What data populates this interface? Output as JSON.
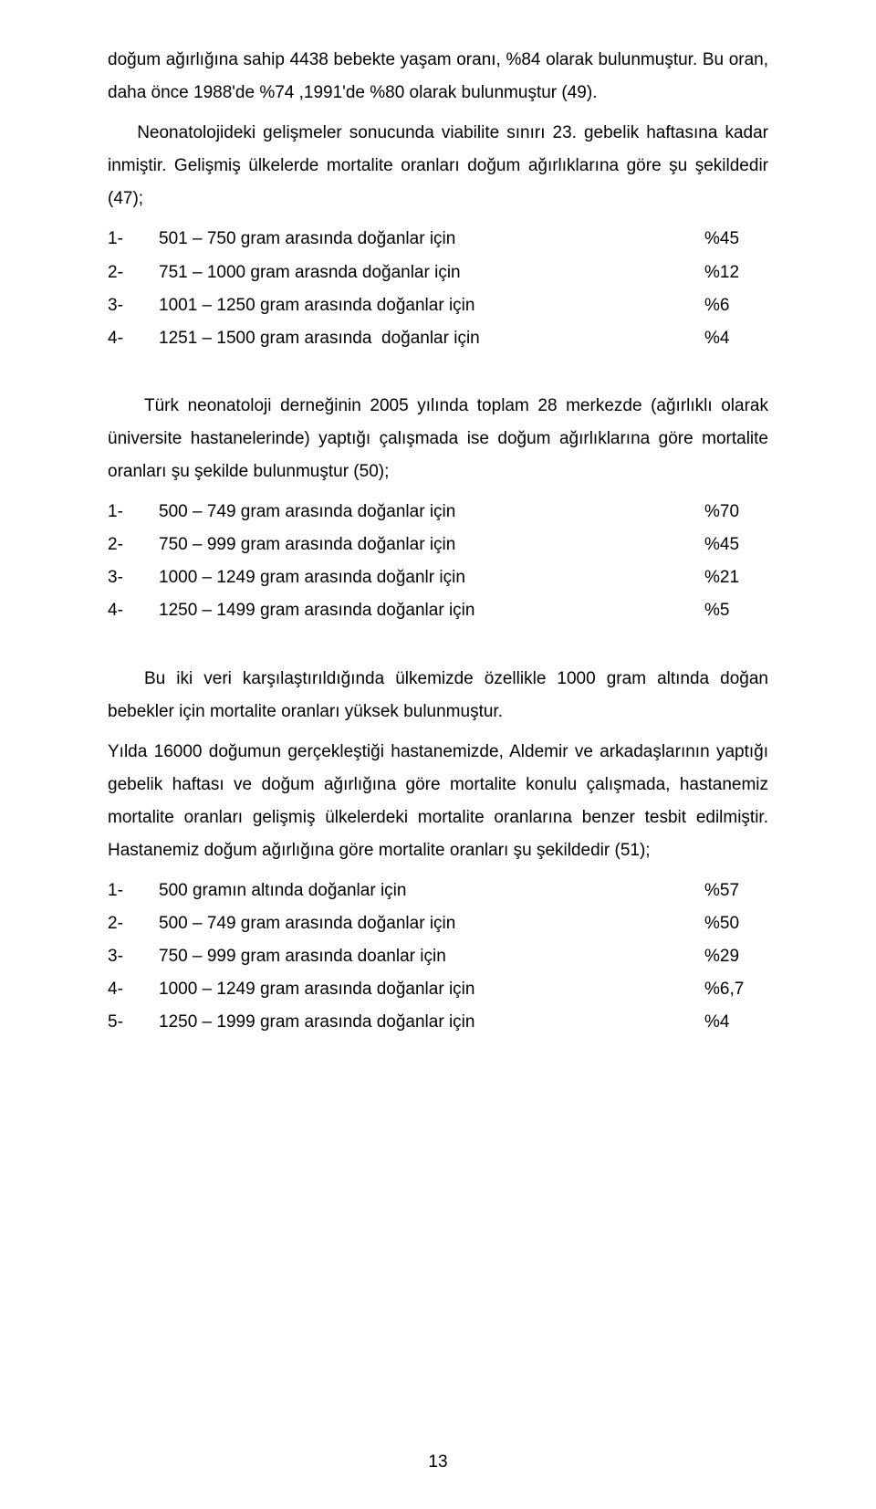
{
  "p1": "doğum ağırlığına sahip 4438 bebekte yaşam oranı, %84 olarak bulunmuştur. Bu oran, daha önce 1988'de %74 ,1991'de %80 olarak bulunmuştur (49).",
  "p2": "    Neonatolojideki gelişmeler sonucunda viabilite sınırı 23. gebelik haftasına kadar inmiştir. Gelişmiş ülkelerde mortalite oranları doğum ağırlıklarına göre şu şekildedir (47);",
  "list1": {
    "rows": [
      {
        "n": "1-",
        "t": "501 – 750 gram arasında doğanlar için",
        "v": "%45"
      },
      {
        "n": "2-",
        "t": "751 – 1000 gram arasnda doğanlar için",
        "v": "%12"
      },
      {
        "n": "3-",
        "t": "1001 – 1250 gram arasında doğanlar için",
        "v": "%6"
      },
      {
        "n": "4-",
        "t": "1251 – 1500 gram arasında  doğanlar için",
        "v": "%4"
      }
    ]
  },
  "p3": "Türk neonatoloji derneğinin 2005 yılında toplam 28 merkezde (ağırlıklı olarak üniversite hastanelerinde) yaptığı çalışmada ise doğum ağırlıklarına  göre mortalite oranları şu şekilde bulunmuştur (50);",
  "list2": {
    "rows": [
      {
        "n": "1-",
        "t": "500 – 749 gram arasında doğanlar için",
        "v": "%70"
      },
      {
        "n": "2-",
        "t": "750 – 999 gram arasında doğanlar için",
        "v": "%45"
      },
      {
        "n": "3-",
        "t": "1000 – 1249 gram arasında doğanlr için",
        "v": "%21"
      },
      {
        "n": "4-",
        "t": "1250 – 1499 gram arasında doğanlar için",
        "v": "%5 "
      }
    ]
  },
  "p4": "Bu iki veri karşılaştırıldığında ülkemizde özellikle 1000 gram altında doğan bebekler için mortalite oranları yüksek bulunmuştur.",
  "p5": "Yılda 16000 doğumun gerçekleştiği hastanemizde, Aldemir ve arkadaşlarının yaptığı gebelik haftası ve doğum ağırlığına göre mortalite konulu çalışmada, hastanemiz mortalite oranları gelişmiş ülkelerdeki mortalite oranlarına benzer tesbit edilmiştir. Hastanemiz doğum ağırlığına göre mortalite oranları şu şekildedir (51);",
  "list3": {
    "rows": [
      {
        "n": "1-",
        "t": "500 gramın altında doğanlar için",
        "v": "%57"
      },
      {
        "n": "2-",
        "t": "500 – 749 gram arasında doğanlar için",
        "v": "%50"
      },
      {
        "n": "3-",
        "t": "750 – 999 gram arasında doanlar için",
        "v": "%29"
      },
      {
        "n": "4-",
        "t": "1000 – 1249 gram arasında doğanlar için",
        "v": "%6,7"
      },
      {
        "n": "5-",
        "t": "1250 – 1999 gram arasında doğanlar için",
        "v": "%4"
      }
    ]
  },
  "pageNumber": "13"
}
